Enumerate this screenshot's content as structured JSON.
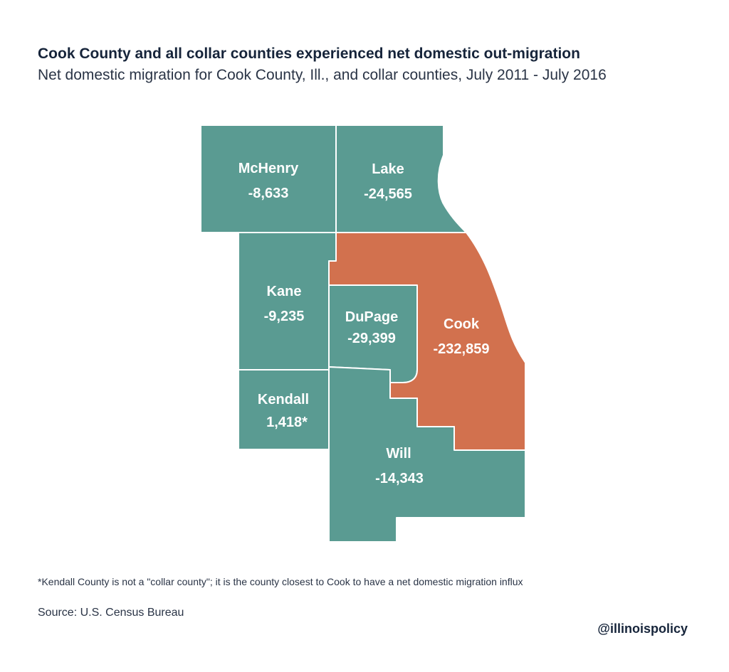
{
  "title": "Cook County and all collar counties experienced net domestic out-migration",
  "subtitle": "Net domestic migration for Cook County, Ill., and collar counties, July 2011 - July 2016",
  "colors": {
    "collar": "#5a9b92",
    "cook": "#d2714e",
    "border": "#ffffff"
  },
  "counties": {
    "mchenry": {
      "name": "McHenry",
      "value": "-8,633"
    },
    "lake": {
      "name": "Lake",
      "value": "-24,565"
    },
    "kane": {
      "name": "Kane",
      "value": "-9,235"
    },
    "dupage": {
      "name": "DuPage",
      "value": "-29,399"
    },
    "cook": {
      "name": "Cook",
      "value": "-232,859"
    },
    "kendall": {
      "name": "Kendall",
      "value": "1,418*"
    },
    "will": {
      "name": "Will",
      "value": "-14,343"
    }
  },
  "footnote": "*Kendall County is not a \"collar county\"; it is the county closest to Cook to have a net domestic migration influx",
  "source": "Source: U.S. Census Bureau",
  "handle": "@illinoispolicy"
}
